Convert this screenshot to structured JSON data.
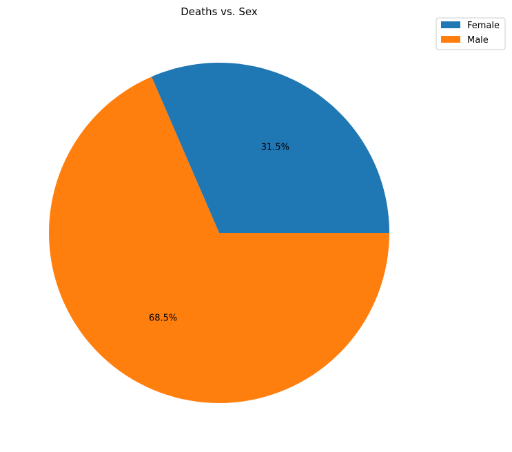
{
  "chart_data": {
    "type": "pie",
    "title": "Deaths vs. Sex",
    "categories": [
      "Female",
      "Male"
    ],
    "values": [
      31.5,
      68.5
    ],
    "value_labels": [
      "31.5%",
      "68.5%"
    ],
    "colors": [
      "#1f77b4",
      "#ff7f0e"
    ],
    "start_angle": 0,
    "direction": "counterclockwise",
    "legend": {
      "placement": "top-right",
      "entries": [
        "Female",
        "Male"
      ]
    }
  }
}
